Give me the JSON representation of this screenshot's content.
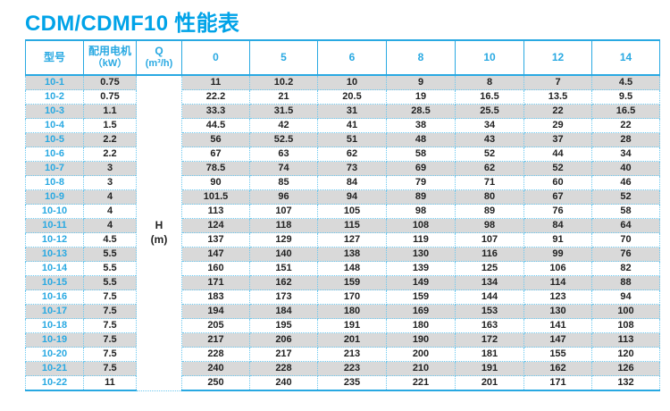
{
  "ui": {
    "title": "CDM/CDMF10 性能表",
    "colors": {
      "accent": "#29a9e2",
      "title": "#00a3e8",
      "row_alt": "#d9d9d9",
      "dotted": "#6cc8ef",
      "text": "#222222"
    },
    "headers": {
      "model": "型号",
      "motor_l1": "配用电机",
      "motor_l2": "（kW）",
      "q_l1": "Q",
      "q_l2": "(m³/h)",
      "h_l1": "H",
      "h_l2": "(m)"
    }
  },
  "chart_data": {
    "type": "table",
    "title": "CDM/CDMF10 性能表",
    "column_groups": {
      "model": "型号",
      "motor_power": "配用电机（kW）",
      "flow_axis": "Q (m³/h)",
      "head_axis": "H (m)"
    },
    "flow_m3h": [
      0,
      5,
      6,
      8,
      10,
      12,
      14
    ],
    "rows": [
      {
        "model": "10-1",
        "motor_kw": 0.75,
        "head_m": [
          11,
          10.2,
          10,
          9,
          8,
          7,
          4.5
        ]
      },
      {
        "model": "10-2",
        "motor_kw": 0.75,
        "head_m": [
          22.2,
          21,
          20.5,
          19,
          16.5,
          13.5,
          9.5
        ]
      },
      {
        "model": "10-3",
        "motor_kw": 1.1,
        "head_m": [
          33.3,
          31.5,
          31,
          28.5,
          25.5,
          22,
          16.5
        ]
      },
      {
        "model": "10-4",
        "motor_kw": 1.5,
        "head_m": [
          44.5,
          42,
          41,
          38,
          34,
          29,
          22
        ]
      },
      {
        "model": "10-5",
        "motor_kw": 2.2,
        "head_m": [
          56,
          52.5,
          51,
          48,
          43,
          37,
          28
        ]
      },
      {
        "model": "10-6",
        "motor_kw": 2.2,
        "head_m": [
          67,
          63,
          62,
          58,
          52,
          44,
          34
        ]
      },
      {
        "model": "10-7",
        "motor_kw": 3,
        "head_m": [
          78.5,
          74,
          73,
          69,
          62,
          52,
          40
        ]
      },
      {
        "model": "10-8",
        "motor_kw": 3,
        "head_m": [
          90,
          85,
          84,
          79,
          71,
          60,
          46
        ]
      },
      {
        "model": "10-9",
        "motor_kw": 4,
        "head_m": [
          101.5,
          96,
          94,
          89,
          80,
          67,
          52
        ]
      },
      {
        "model": "10-10",
        "motor_kw": 4,
        "head_m": [
          113,
          107,
          105,
          98,
          89,
          76,
          58
        ]
      },
      {
        "model": "10-11",
        "motor_kw": 4,
        "head_m": [
          124,
          118,
          115,
          108,
          98,
          84,
          64
        ]
      },
      {
        "model": "10-12",
        "motor_kw": 4.5,
        "head_m": [
          137,
          129,
          127,
          119,
          107,
          91,
          70
        ]
      },
      {
        "model": "10-13",
        "motor_kw": 5.5,
        "head_m": [
          147,
          140,
          138,
          130,
          116,
          99,
          76
        ]
      },
      {
        "model": "10-14",
        "motor_kw": 5.5,
        "head_m": [
          160,
          151,
          148,
          139,
          125,
          106,
          82
        ]
      },
      {
        "model": "10-15",
        "motor_kw": 5.5,
        "head_m": [
          171,
          162,
          159,
          149,
          134,
          114,
          88
        ]
      },
      {
        "model": "10-16",
        "motor_kw": 7.5,
        "head_m": [
          183,
          173,
          170,
          159,
          144,
          123,
          94
        ]
      },
      {
        "model": "10-17",
        "motor_kw": 7.5,
        "head_m": [
          194,
          184,
          180,
          169,
          153,
          130,
          100
        ]
      },
      {
        "model": "10-18",
        "motor_kw": 7.5,
        "head_m": [
          205,
          195,
          191,
          180,
          163,
          141,
          108
        ]
      },
      {
        "model": "10-19",
        "motor_kw": 7.5,
        "head_m": [
          217,
          206,
          201,
          190,
          172,
          147,
          113
        ]
      },
      {
        "model": "10-20",
        "motor_kw": 7.5,
        "head_m": [
          228,
          217,
          213,
          200,
          181,
          155,
          120
        ]
      },
      {
        "model": "10-21",
        "motor_kw": 7.5,
        "head_m": [
          240,
          228,
          223,
          210,
          191,
          162,
          126
        ]
      },
      {
        "model": "10-22",
        "motor_kw": 11,
        "head_m": [
          250,
          240,
          235,
          221,
          201,
          171,
          132
        ]
      }
    ]
  }
}
